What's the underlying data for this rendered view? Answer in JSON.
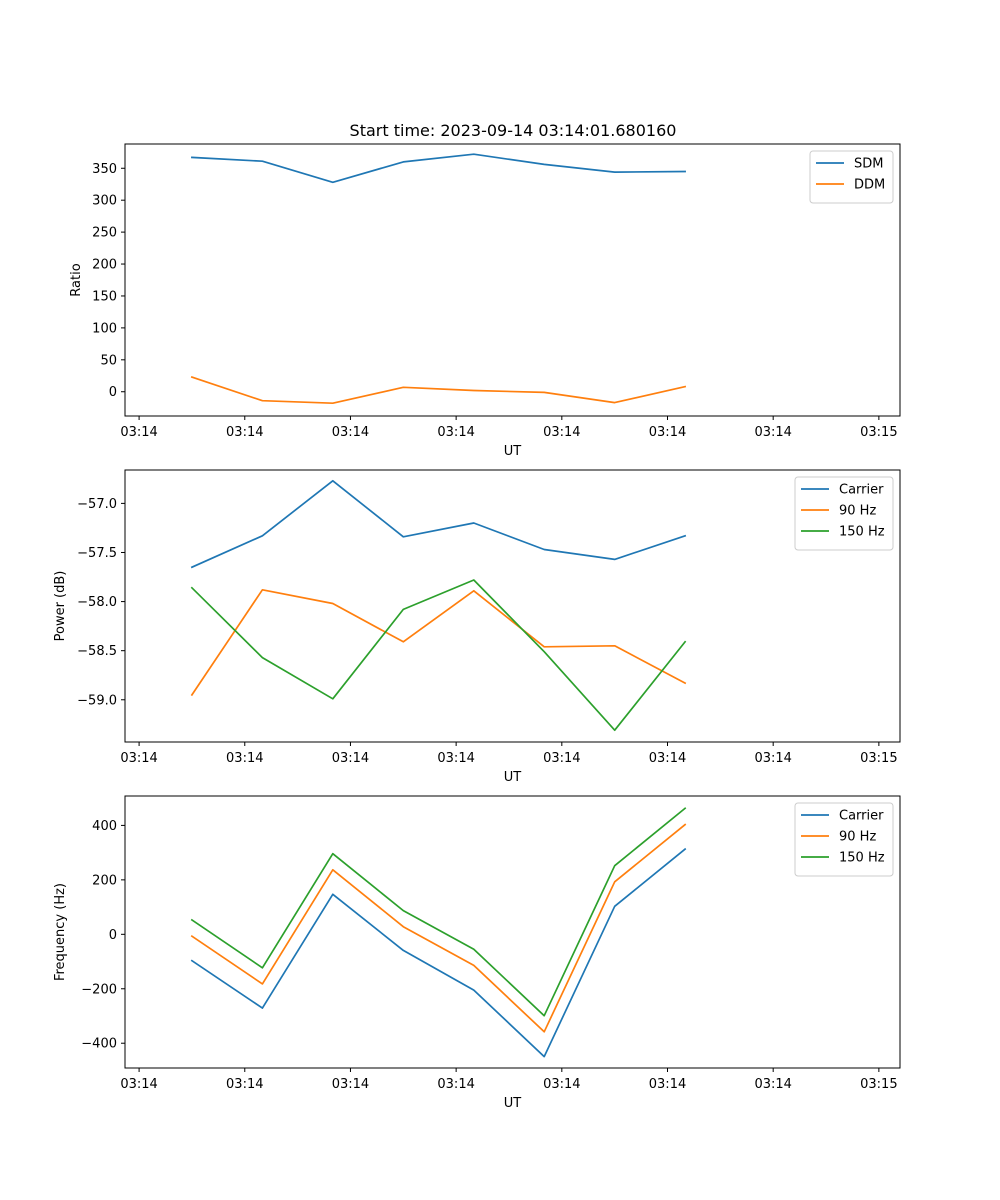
{
  "figure": {
    "title": "Start time: 2023-09-14 03:14:01.680160"
  },
  "chart_data": [
    {
      "type": "line",
      "title": "Start time: 2023-09-14 03:14:01.680160",
      "xlabel": "UT",
      "ylabel": "Ratio",
      "xticks": [
        "03:14",
        "03:14",
        "03:14",
        "03:14",
        "03:14",
        "03:14",
        "03:14",
        "03:15"
      ],
      "yticks": [
        0,
        50,
        100,
        150,
        200,
        250,
        300,
        350
      ],
      "ylim": [
        -38,
        388
      ],
      "x_index_ticks": [
        -0.2,
        1.3,
        2.8,
        4.3,
        5.8,
        7.3,
        8.8,
        10.3
      ],
      "xlim": [
        -0.4,
        10.6
      ],
      "x": [
        0.55,
        1.55,
        2.55,
        3.55,
        4.55,
        5.55,
        6.55,
        7.55
      ],
      "legend_loc": "upper right",
      "series": [
        {
          "name": "SDM",
          "color": "#1f77b4",
          "values": [
            367,
            361,
            328,
            360,
            372,
            356,
            344,
            345
          ]
        },
        {
          "name": "DDM",
          "color": "#ff7f0e",
          "values": [
            23,
            -14,
            -18,
            7,
            2,
            -1,
            -17,
            8
          ]
        }
      ]
    },
    {
      "type": "line",
      "xlabel": "UT",
      "ylabel": "Power (dB)",
      "xticks": [
        "03:14",
        "03:14",
        "03:14",
        "03:14",
        "03:14",
        "03:14",
        "03:14",
        "03:15"
      ],
      "yticks": [
        -59.0,
        -58.5,
        -58.0,
        -57.5,
        -57.0
      ],
      "ytick_labels": [
        "−59.0",
        "−58.5",
        "−58.0",
        "−57.5",
        "−57.0"
      ],
      "ylim": [
        -59.43,
        -56.66
      ],
      "x_index_ticks": [
        -0.2,
        1.3,
        2.8,
        4.3,
        5.8,
        7.3,
        8.8,
        10.3
      ],
      "xlim": [
        -0.4,
        10.6
      ],
      "x": [
        0.55,
        1.55,
        2.55,
        3.55,
        4.55,
        5.55,
        6.55,
        7.55
      ],
      "legend_loc": "upper right",
      "series": [
        {
          "name": "Carrier",
          "color": "#1f77b4",
          "values": [
            -57.65,
            -57.33,
            -56.77,
            -57.34,
            -57.2,
            -57.47,
            -57.57,
            -57.33
          ]
        },
        {
          "name": "90 Hz",
          "color": "#ff7f0e",
          "values": [
            -58.95,
            -57.88,
            -58.02,
            -58.41,
            -57.89,
            -58.46,
            -58.45,
            -58.83
          ]
        },
        {
          "name": "150 Hz",
          "color": "#2ca02c",
          "values": [
            -57.86,
            -58.57,
            -58.99,
            -58.08,
            -57.78,
            -58.51,
            -59.31,
            -58.41
          ]
        }
      ]
    },
    {
      "type": "line",
      "xlabel": "UT",
      "ylabel": "Frequency (Hz)",
      "xticks": [
        "03:14",
        "03:14",
        "03:14",
        "03:14",
        "03:14",
        "03:14",
        "03:14",
        "03:15"
      ],
      "yticks": [
        -400,
        -200,
        0,
        200,
        400
      ],
      "ytick_labels": [
        "−400",
        "−200",
        "0",
        "200",
        "400"
      ],
      "ylim": [
        -491,
        508
      ],
      "x_index_ticks": [
        -0.2,
        1.3,
        2.8,
        4.3,
        5.8,
        7.3,
        8.8,
        10.3
      ],
      "xlim": [
        -0.4,
        10.6
      ],
      "x": [
        0.55,
        1.55,
        2.55,
        3.55,
        4.55,
        5.55,
        6.55,
        7.55
      ],
      "legend_loc": "upper right",
      "series": [
        {
          "name": "Carrier",
          "color": "#1f77b4",
          "values": [
            -97,
            -271,
            147,
            -59,
            -205,
            -449,
            103,
            313
          ]
        },
        {
          "name": "90 Hz",
          "color": "#ff7f0e",
          "values": [
            -7,
            -182,
            237,
            28,
            -114,
            -358,
            193,
            403
          ]
        },
        {
          "name": "150 Hz",
          "color": "#2ca02c",
          "values": [
            53,
            -123,
            296,
            87,
            -55,
            -299,
            252,
            463
          ]
        }
      ]
    }
  ]
}
